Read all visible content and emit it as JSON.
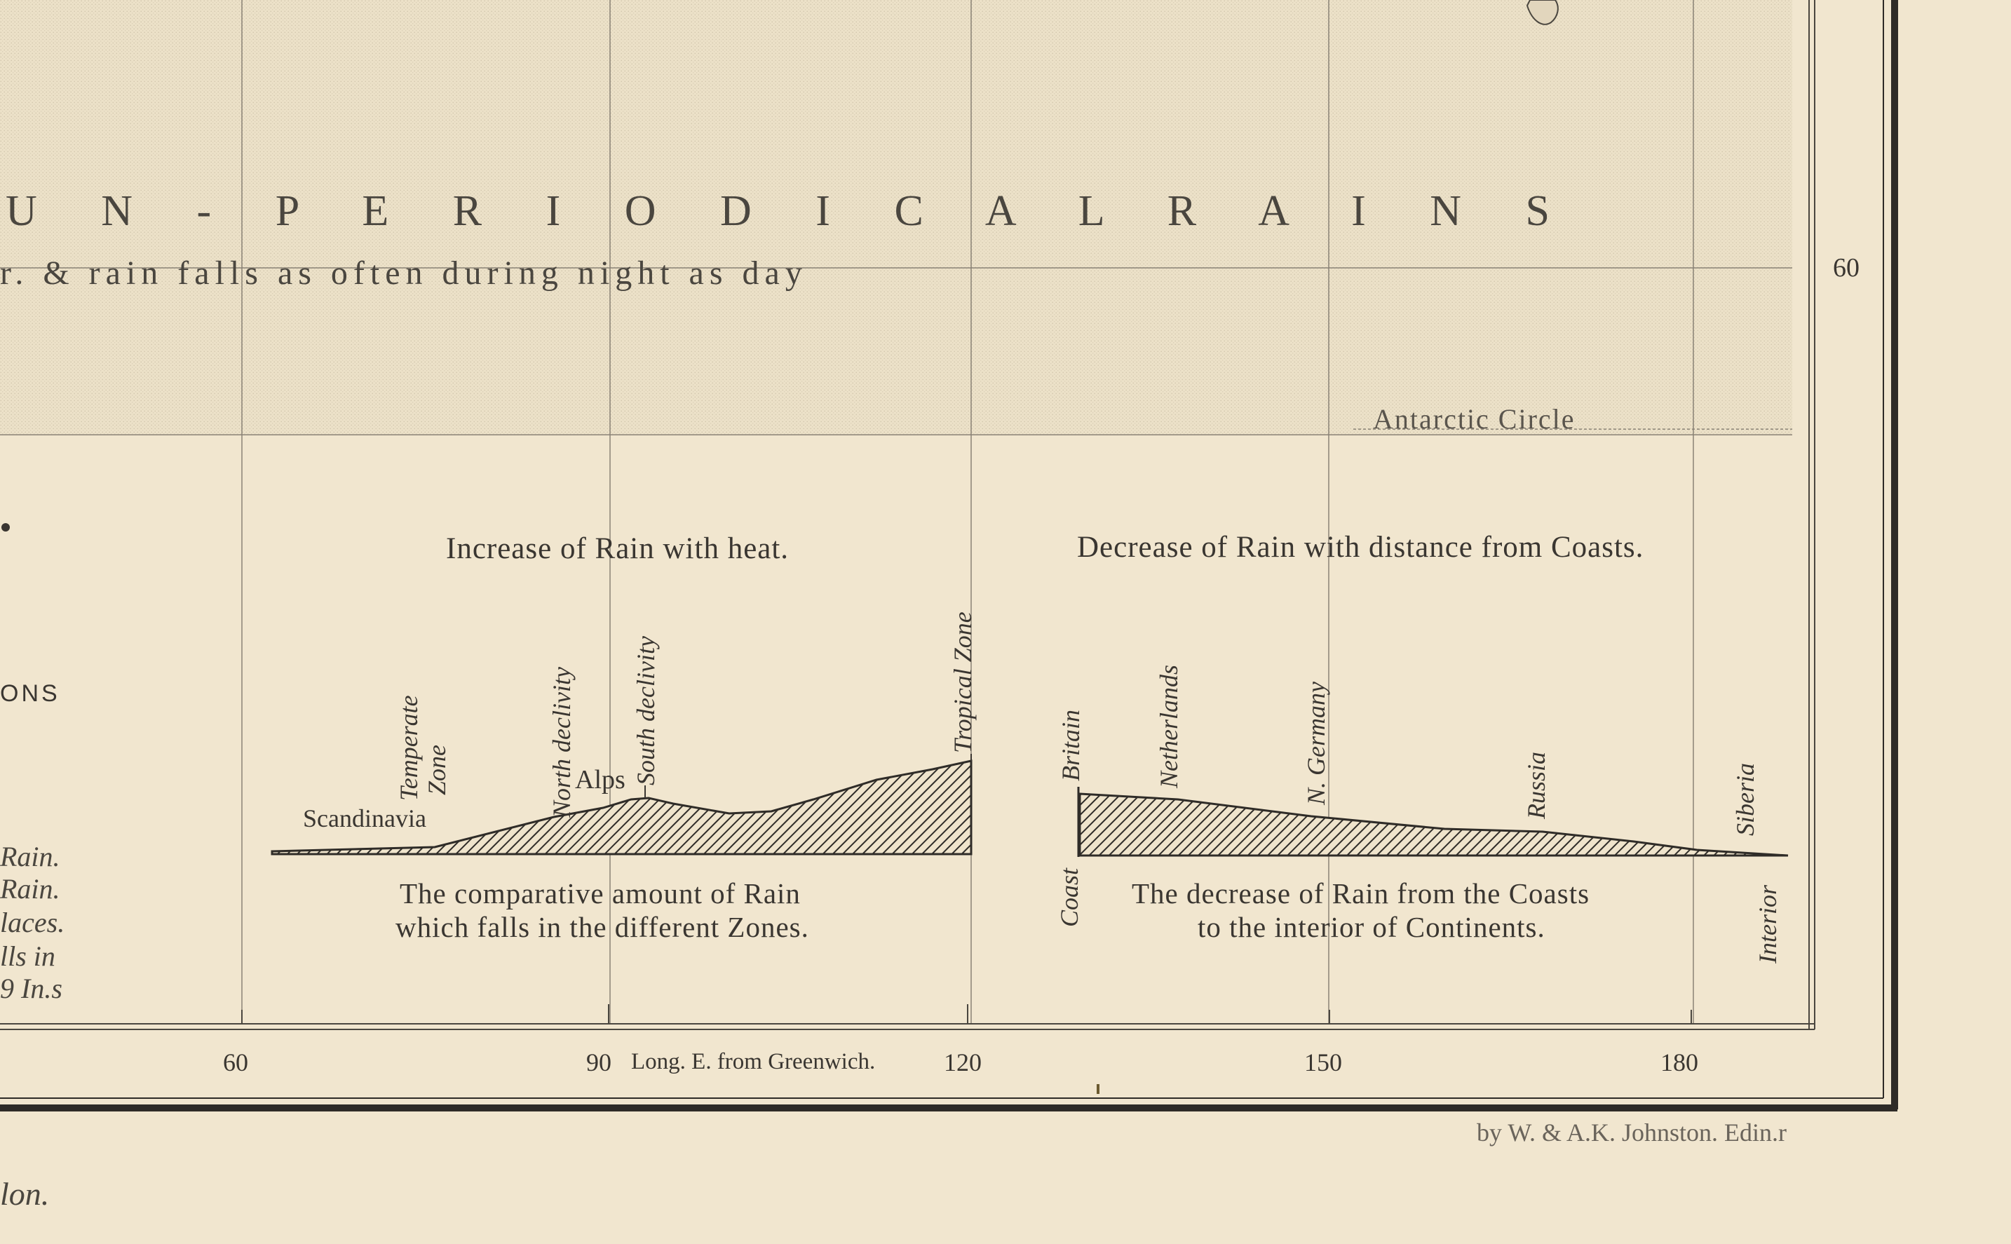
{
  "map": {
    "headline": "U N - P E R I O D I C A L   R A I N S",
    "subline": "r. & rain falls as often during night as day",
    "antarctic_label": "Antarctic Circle",
    "lat_label": "60"
  },
  "diagrams": {
    "heat": {
      "title": "Increase of Rain with heat.",
      "caption_line1": "The comparative amount of Rain",
      "caption_line2": "which falls in the different Zones.",
      "labels": {
        "scandinavia": "Scandinavia",
        "temperate_1": "Temperate",
        "temperate_2": "Zone",
        "north_declivity": "North declivity",
        "alps": "Alps",
        "south_declivity": "South declivity",
        "tropical": "Tropical Zone"
      }
    },
    "coasts": {
      "title": "Decrease of Rain with distance from Coasts.",
      "caption_line1": "The decrease of Rain from the Coasts",
      "caption_line2": "to the interior of Continents.",
      "labels": {
        "britain": "Britain",
        "netherlands": "Netherlands",
        "n_germany": "N. Germany",
        "russia": "Russia",
        "siberia": "Siberia",
        "coast": "Coast",
        "interior": "Interior"
      }
    }
  },
  "legend_fragment": {
    "ons": "ONS",
    "line1": "Rain.",
    "line2": "Rain.",
    "line3": "laces.",
    "line4": "lls in",
    "line5": "9 In.s"
  },
  "longitude": {
    "t60": "60",
    "t90": "90",
    "label": "Long. E. from Greenwich.",
    "t120": "120",
    "t150": "150",
    "t180": "180"
  },
  "credits": {
    "engraver": "by W. & A.K. Johnston. Edin.r",
    "bottom_fragment": "lon."
  }
}
